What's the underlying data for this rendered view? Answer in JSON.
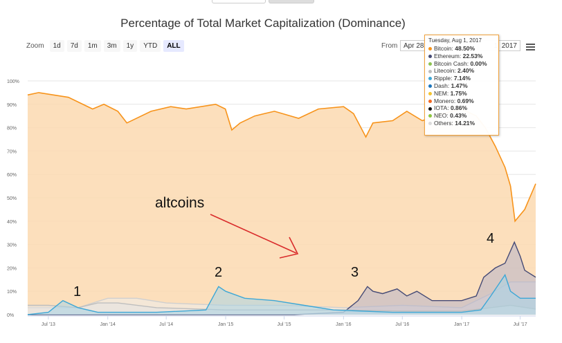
{
  "toolbar": {
    "zoom_label": "Zoom",
    "zoom_buttons": [
      "1d",
      "7d",
      "1m",
      "3m",
      "1y",
      "YTD",
      "ALL"
    ],
    "active_zoom": "ALL",
    "from_label": "From",
    "from_value": "Apr 28",
    "to_value": "1, 2017"
  },
  "annotations": {
    "n1": "1",
    "n2": "2",
    "n3": "3",
    "n4": "4",
    "altcoins": "altcoins",
    "arrow_color": "#d92b2b"
  },
  "tooltip": {
    "date": "Tuesday, Aug 1, 2017",
    "rows": [
      {
        "name": "Bitcoin",
        "value": "48.50%",
        "color": "#f7931a"
      },
      {
        "name": "Ethereum",
        "value": "22.53%",
        "color": "#454a75"
      },
      {
        "name": "Bitcoin Cash",
        "value": "0.00%",
        "color": "#8dc351"
      },
      {
        "name": "Litecoin",
        "value": "2.40%",
        "color": "#bebebe"
      },
      {
        "name": "Ripple",
        "value": "7.14%",
        "color": "#3da7d6"
      },
      {
        "name": "Dash",
        "value": "1.47%",
        "color": "#1c75bc"
      },
      {
        "name": "NEM",
        "value": "1.75%",
        "color": "#f4c430"
      },
      {
        "name": "Monero",
        "value": "0.69%",
        "color": "#f26822"
      },
      {
        "name": "IOTA",
        "value": "0.86%",
        "color": "#111111"
      },
      {
        "name": "NEO",
        "value": "0.43%",
        "color": "#8cc63f"
      },
      {
        "name": "Others",
        "value": "14.21%",
        "color": "#dcdcdc"
      }
    ]
  },
  "chart_data": {
    "type": "area",
    "title": "Percentage of Total Market Capitalization (Dominance)",
    "xlabel": "",
    "ylabel": "",
    "x_ticks": [
      "Jul '13",
      "Jan '14",
      "Jul '14",
      "Jan '15",
      "Jul '15",
      "Jan '16",
      "Jul '16",
      "Jan '17",
      "Jul '17"
    ],
    "y_ticks": [
      "0%",
      "10%",
      "20%",
      "30%",
      "40%",
      "50%",
      "60%",
      "70%",
      "80%",
      "90%",
      "100%"
    ],
    "ylim": [
      0,
      100
    ],
    "x_range": [
      "2013-04-28",
      "2017-08-18"
    ],
    "grid": true,
    "series": [
      {
        "name": "Bitcoin",
        "color": "#f7931a",
        "fill": "#fbd9b0",
        "x": [
          "2013-04-28",
          "2013-06-01",
          "2013-09-01",
          "2013-11-15",
          "2013-12-20",
          "2014-02-01",
          "2014-03-01",
          "2014-05-15",
          "2014-07-15",
          "2014-09-01",
          "2014-12-01",
          "2014-12-31",
          "2015-01-20",
          "2015-02-15",
          "2015-04-01",
          "2015-06-01",
          "2015-08-15",
          "2015-10-15",
          "2016-01-01",
          "2016-02-01",
          "2016-03-10",
          "2016-04-01",
          "2016-06-01",
          "2016-07-15",
          "2016-09-01",
          "2016-11-01",
          "2017-01-01",
          "2017-02-15",
          "2017-03-15",
          "2017-04-15",
          "2017-05-15",
          "2017-06-01",
          "2017-06-15",
          "2017-07-15",
          "2017-08-18"
        ],
        "y": [
          94,
          95,
          93,
          88,
          90,
          87,
          82,
          87,
          89,
          88,
          90,
          88,
          79,
          82,
          85,
          87,
          84,
          88,
          89,
          86,
          76,
          82,
          83,
          87,
          83,
          86,
          88,
          85,
          80,
          72,
          63,
          55,
          40,
          45,
          56
        ]
      },
      {
        "name": "Ethereum",
        "color": "#454a75",
        "fill": "#b7b3c8",
        "x": [
          "2013-04-28",
          "2015-08-01",
          "2016-01-01",
          "2016-02-15",
          "2016-03-15",
          "2016-04-01",
          "2016-05-01",
          "2016-06-15",
          "2016-07-15",
          "2016-08-15",
          "2016-10-01",
          "2017-01-01",
          "2017-02-15",
          "2017-03-10",
          "2017-04-15",
          "2017-05-15",
          "2017-06-13",
          "2017-07-01",
          "2017-07-15",
          "2017-08-18"
        ],
        "y": [
          0,
          0,
          1,
          6,
          12,
          10,
          9,
          11,
          8,
          10,
          6,
          6,
          8,
          16,
          20,
          22,
          31,
          25,
          19,
          16
        ]
      },
      {
        "name": "Ripple",
        "color": "#3da7d6",
        "fill": "#a7d3e5",
        "x": [
          "2013-04-28",
          "2013-07-01",
          "2013-08-15",
          "2013-10-01",
          "2013-12-01",
          "2014-06-01",
          "2014-11-01",
          "2014-12-10",
          "2015-01-01",
          "2015-03-01",
          "2015-06-01",
          "2015-09-01",
          "2015-12-01",
          "2016-06-01",
          "2017-01-01",
          "2017-03-01",
          "2017-04-01",
          "2017-05-15",
          "2017-06-01",
          "2017-07-01",
          "2017-08-18"
        ],
        "y": [
          0,
          1,
          6,
          3,
          1,
          1,
          2,
          12,
          10,
          7,
          6,
          4,
          2,
          1,
          1,
          2,
          8,
          17,
          10,
          7,
          7
        ]
      },
      {
        "name": "Litecoin",
        "color": "#bebebe",
        "fill": "#e4e4e4",
        "x": [
          "2013-04-28",
          "2013-07-01",
          "2013-10-01",
          "2013-12-01",
          "2014-02-01",
          "2014-06-01",
          "2015-01-01",
          "2015-07-01",
          "2016-01-01",
          "2016-07-01",
          "2017-01-01",
          "2017-04-01",
          "2017-06-01",
          "2017-08-18"
        ],
        "y": [
          4,
          4,
          3,
          5,
          5,
          3,
          2,
          2,
          2,
          1.5,
          1.5,
          3,
          4,
          2.4
        ]
      },
      {
        "name": "Others",
        "color": "#cfcfcf",
        "fill": "#ededed",
        "x": [
          "2013-04-28",
          "2013-10-01",
          "2014-01-01",
          "2014-04-01",
          "2014-07-01",
          "2015-01-01",
          "2015-07-01",
          "2016-01-01",
          "2016-07-01",
          "2017-01-01",
          "2017-04-01",
          "2017-06-01",
          "2017-08-18"
        ],
        "y": [
          3,
          3,
          7,
          7,
          5,
          4,
          4,
          3,
          4,
          3,
          9,
          14,
          14
        ]
      }
    ]
  }
}
